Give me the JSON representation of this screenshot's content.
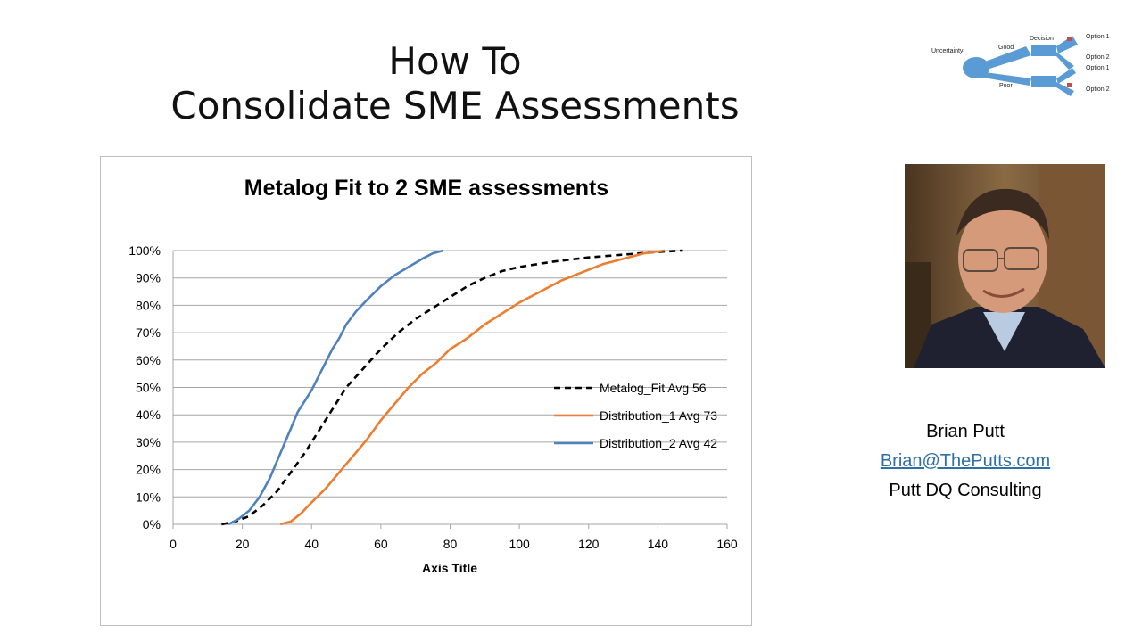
{
  "slide": {
    "title_line1": "How To",
    "title_line2": "Consolidate SME Assessments"
  },
  "decision_tree": {
    "uncertainty_label": "Uncertainty",
    "good_label": "Good",
    "poor_label": "Poor",
    "decision_label": "Decision",
    "option_top_1": "Option 1",
    "option_top_2": "Option 2",
    "option_bottom_1": "Option 1",
    "option_bottom_2": "Option 2",
    "shape_color": "#5b9bd5",
    "marker_color": "#c0504d"
  },
  "contact": {
    "name": "Brian Putt",
    "email": "Brian@ThePutts.com",
    "company": "Putt DQ Consulting"
  },
  "chart_data": {
    "type": "line",
    "title": "Metalog Fit to 2 SME assessments",
    "xlabel": "Axis Title",
    "ylabel": "",
    "xlim": [
      0,
      160
    ],
    "ylim": [
      0,
      1
    ],
    "xticks": [
      0,
      20,
      40,
      60,
      80,
      100,
      120,
      140,
      160
    ],
    "yticks": [
      0,
      0.1,
      0.2,
      0.3,
      0.4,
      0.5,
      0.6,
      0.7,
      0.8,
      0.9,
      1.0
    ],
    "ytick_labels": [
      "0%",
      "10%",
      "20%",
      "30%",
      "40%",
      "50%",
      "60%",
      "70%",
      "80%",
      "90%",
      "100%"
    ],
    "grid": "horizontal",
    "legend_position": "right",
    "series": [
      {
        "name": "Metalog_Fit Avg 56",
        "color": "#000000",
        "dash": "dashed",
        "points": [
          [
            14,
            0
          ],
          [
            18,
            0.01
          ],
          [
            22,
            0.03
          ],
          [
            26,
            0.07
          ],
          [
            30,
            0.12
          ],
          [
            34,
            0.19
          ],
          [
            38,
            0.26
          ],
          [
            42,
            0.34
          ],
          [
            46,
            0.42
          ],
          [
            50,
            0.5
          ],
          [
            55,
            0.57
          ],
          [
            60,
            0.64
          ],
          [
            65,
            0.7
          ],
          [
            70,
            0.75
          ],
          [
            75,
            0.79
          ],
          [
            80,
            0.83
          ],
          [
            85,
            0.87
          ],
          [
            90,
            0.9
          ],
          [
            95,
            0.925
          ],
          [
            100,
            0.94
          ],
          [
            110,
            0.96
          ],
          [
            120,
            0.975
          ],
          [
            130,
            0.985
          ],
          [
            140,
            0.995
          ],
          [
            147,
            1.0
          ]
        ]
      },
      {
        "name": "Distribution_1 Avg 73",
        "color": "#ed7d31",
        "dash": "solid",
        "points": [
          [
            31,
            0
          ],
          [
            34,
            0.01
          ],
          [
            37,
            0.04
          ],
          [
            40,
            0.08
          ],
          [
            44,
            0.13
          ],
          [
            48,
            0.19
          ],
          [
            52,
            0.25
          ],
          [
            56,
            0.31
          ],
          [
            60,
            0.38
          ],
          [
            64,
            0.44
          ],
          [
            68,
            0.5
          ],
          [
            72,
            0.55
          ],
          [
            76,
            0.59
          ],
          [
            80,
            0.64
          ],
          [
            85,
            0.68
          ],
          [
            90,
            0.73
          ],
          [
            95,
            0.77
          ],
          [
            100,
            0.81
          ],
          [
            106,
            0.85
          ],
          [
            112,
            0.89
          ],
          [
            118,
            0.92
          ],
          [
            124,
            0.95
          ],
          [
            130,
            0.97
          ],
          [
            136,
            0.99
          ],
          [
            142,
            1.0
          ]
        ]
      },
      {
        "name": "Distribution_2 Avg 42",
        "color": "#4f81bd",
        "dash": "solid",
        "points": [
          [
            16,
            0
          ],
          [
            19,
            0.02
          ],
          [
            22,
            0.05
          ],
          [
            25,
            0.1
          ],
          [
            28,
            0.17
          ],
          [
            30,
            0.23
          ],
          [
            32,
            0.29
          ],
          [
            34,
            0.35
          ],
          [
            36,
            0.41
          ],
          [
            38,
            0.45
          ],
          [
            40,
            0.49
          ],
          [
            42,
            0.54
          ],
          [
            44,
            0.59
          ],
          [
            46,
            0.64
          ],
          [
            48,
            0.68
          ],
          [
            50,
            0.73
          ],
          [
            53,
            0.78
          ],
          [
            56,
            0.82
          ],
          [
            60,
            0.87
          ],
          [
            64,
            0.91
          ],
          [
            68,
            0.94
          ],
          [
            72,
            0.97
          ],
          [
            75,
            0.99
          ],
          [
            78,
            1.0
          ]
        ]
      }
    ]
  }
}
